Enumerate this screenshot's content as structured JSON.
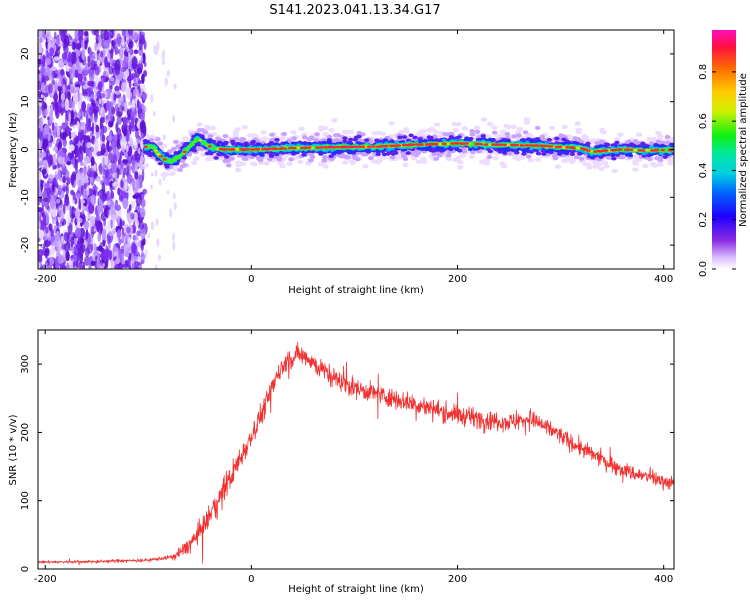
{
  "title": "S141.2023.041.13.34.G17",
  "chart_data": [
    {
      "type": "heatmap",
      "xlabel": "Height of straight line (km)",
      "ylabel": "Frequency (Hz)",
      "xlim": [
        -207,
        410
      ],
      "ylim": [
        -25,
        25
      ],
      "x_ticks": [
        -200,
        0,
        200,
        400
      ],
      "y_ticks": [
        -20,
        -10,
        0,
        10,
        20
      ],
      "colorbar": {
        "label": "Normalized spectral amplitude",
        "range": [
          0,
          0.97
        ],
        "ticks": [
          "0.0",
          "0.2",
          "0.4",
          "0.6",
          "0.8"
        ]
      },
      "noise_region_x": [
        -207,
        -103
      ],
      "ridge_frequency": {
        "x": [
          -103,
          -95,
          -90,
          -85,
          -78,
          -72,
          -65,
          -58,
          -52,
          -48,
          -42,
          -35,
          -25,
          0,
          40,
          80,
          120,
          160,
          200,
          240,
          280,
          300,
          320,
          330,
          340,
          360,
          380,
          410
        ],
        "y": [
          0.5,
          0.5,
          -1,
          -2,
          -2.5,
          -1.8,
          -0.5,
          1,
          2.3,
          1.8,
          0.8,
          0.2,
          0,
          0,
          0.3,
          0.5,
          0.6,
          1,
          1.3,
          1,
          0.8,
          0.5,
          0.3,
          -0.5,
          -0.3,
          0,
          -0.2,
          -0.1
        ]
      }
    },
    {
      "type": "line",
      "xlabel": "Height of straight line (km)",
      "ylabel": "SNR (10 * v/v)",
      "xlim": [
        -207,
        410
      ],
      "ylim": [
        0,
        350
      ],
      "x_ticks": [
        -200,
        0,
        200,
        400
      ],
      "y_ticks": [
        0,
        100,
        200,
        300
      ],
      "line_color": "#f03232",
      "trend": {
        "x": [
          -207,
          -150,
          -100,
          -75,
          -60,
          -45,
          -30,
          -15,
          0,
          15,
          25,
          35,
          45,
          55,
          65,
          80,
          100,
          150,
          200,
          250,
          270,
          290,
          310,
          340,
          370,
          410
        ],
        "y": [
          10,
          11,
          13,
          18,
          35,
          65,
          105,
          150,
          195,
          245,
          285,
          305,
          315,
          310,
          295,
          280,
          265,
          245,
          225,
          215,
          220,
          205,
          185,
          160,
          140,
          125
        ]
      },
      "noise_amplitude": {
        "x": [
          -207,
          -80,
          -60,
          -30,
          0,
          30,
          80,
          200,
          300,
          410
        ],
        "y": [
          3,
          4,
          20,
          30,
          28,
          25,
          22,
          22,
          20,
          16
        ]
      }
    }
  ]
}
